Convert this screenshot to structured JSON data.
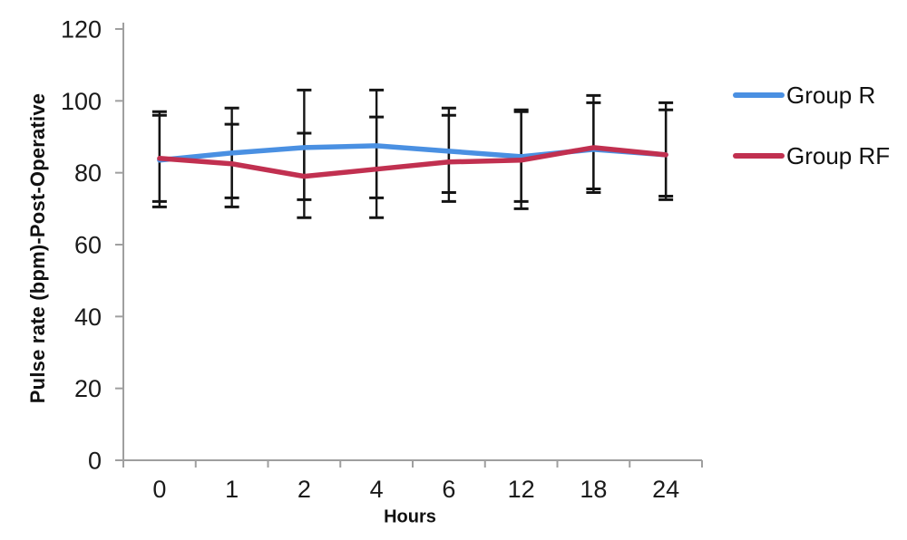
{
  "chart_data": {
    "type": "line",
    "title": "",
    "xlabel": "Hours",
    "ylabel": "Pulse rate (bpm)-Post-Operative",
    "categories": [
      "0",
      "1",
      "2",
      "4",
      "6",
      "12",
      "18",
      "24"
    ],
    "ylim": [
      0,
      120
    ],
    "yticks": [
      0,
      20,
      40,
      60,
      80,
      100,
      120
    ],
    "grid": false,
    "legend_position": "right",
    "axis_color": "#9f9f9f",
    "text_color": "#1a1a1a",
    "error_bar_color": "#141414",
    "series": [
      {
        "name": "Group R",
        "color": "#4a90e2",
        "values": [
          83.5,
          85.5,
          87,
          87.5,
          86,
          84.5,
          86.5,
          85
        ],
        "error_upper": [
          97,
          98,
          103,
          103,
          98,
          97.5,
          101.5,
          99.5
        ],
        "error_lower": [
          72,
          73,
          72.5,
          73,
          74.5,
          72,
          75.5,
          73.5
        ]
      },
      {
        "name": "Group RF",
        "color": "#c13050",
        "values": [
          84,
          82.5,
          79,
          81,
          83,
          83.5,
          87,
          85
        ],
        "error_upper": [
          96,
          93.5,
          91,
          95.5,
          96,
          97,
          99.5,
          97.5
        ],
        "error_lower": [
          70.5,
          70.5,
          67.5,
          67.5,
          72,
          70,
          74.5,
          72.5
        ]
      }
    ]
  }
}
